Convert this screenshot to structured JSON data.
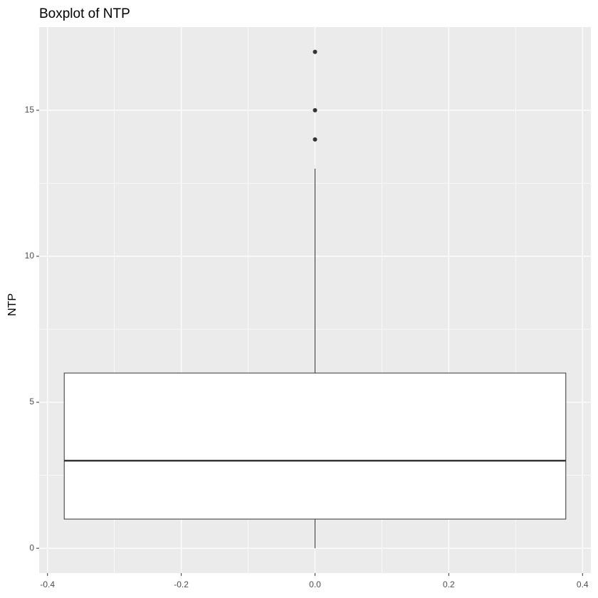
{
  "chart_data": {
    "type": "box",
    "title": "Boxplot of NTP",
    "y_label": "NTP",
    "boxes": [
      {
        "x": 0,
        "width": 0.75,
        "whislo": 0,
        "q1": 1,
        "median": 3,
        "q3": 6,
        "whishi": 13,
        "outliers": [
          14,
          15,
          17
        ]
      }
    ],
    "xlim": [
      -0.4125,
      0.4125
    ],
    "xticks": [
      -0.4,
      -0.2,
      {
        "value": 0,
        "label": "0.0"
      },
      0.2,
      0.4
    ],
    "ylim": [
      -0.85,
      17.85
    ],
    "yticks": [
      0,
      5,
      10,
      15
    ],
    "grid": true,
    "minor_grid": true,
    "panel_color": "#ebebeb",
    "box_fill": "#ffffff",
    "line_color": "#333333"
  }
}
